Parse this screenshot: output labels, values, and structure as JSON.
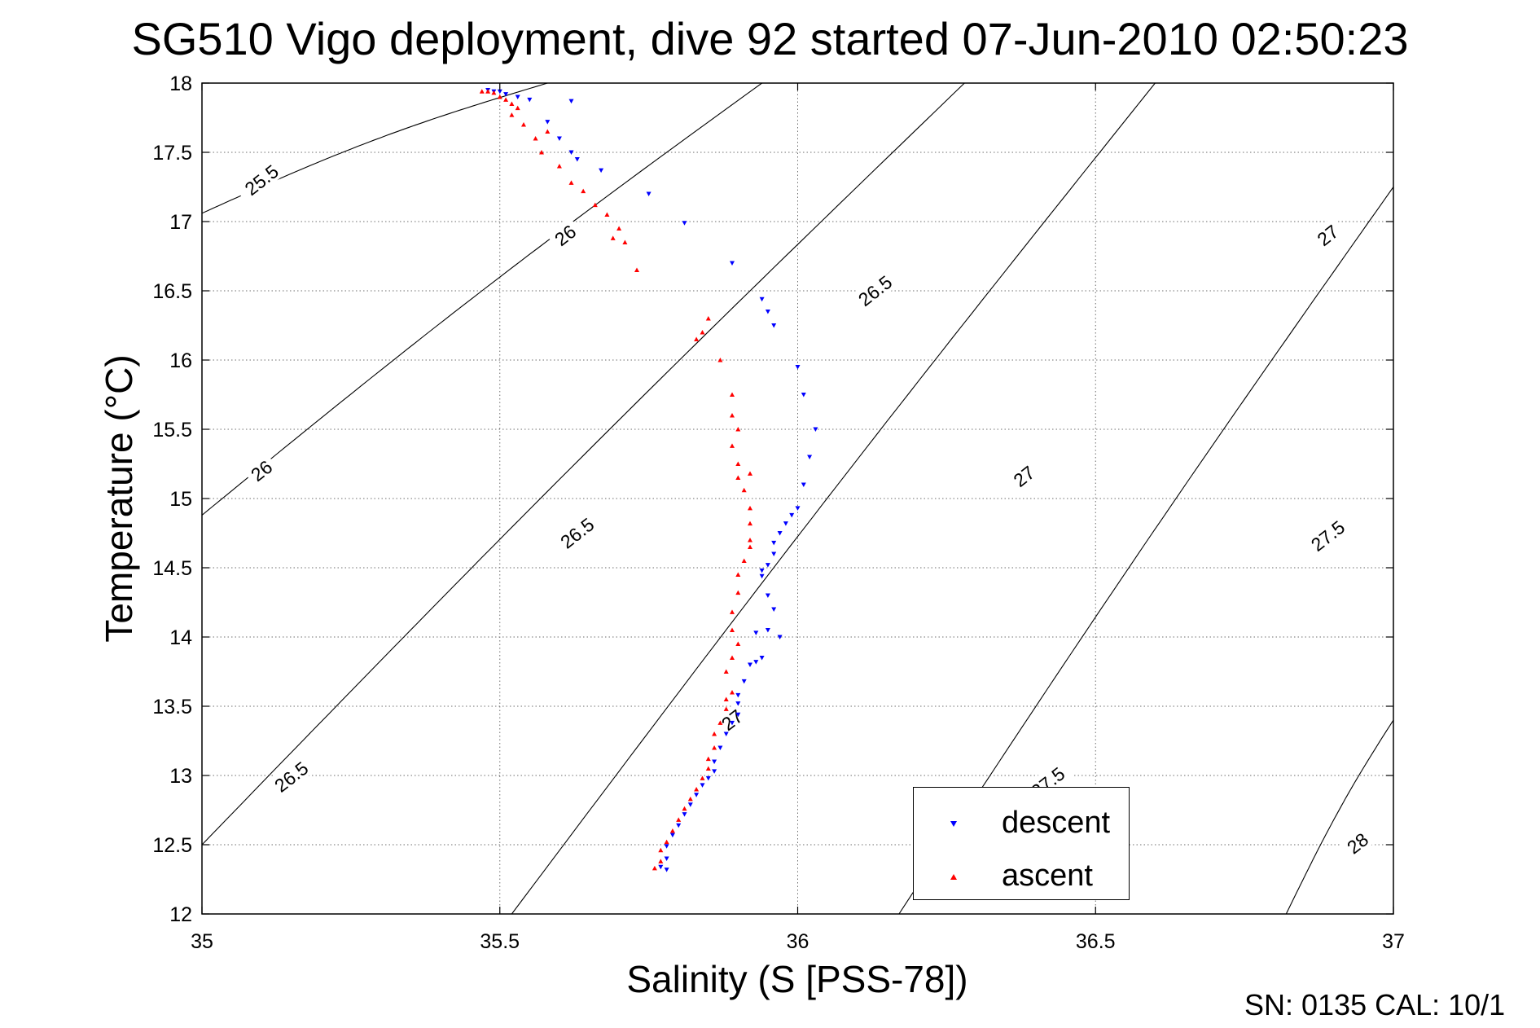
{
  "chart_data": {
    "type": "scatter",
    "title": "SG510 Vigo deployment, dive 92 started 07-Jun-2010 02:50:23",
    "xlabel": "Salinity (S [PSS-78])",
    "ylabel": "Temperature (°C)",
    "xlim": [
      35,
      37
    ],
    "ylim": [
      12,
      18
    ],
    "xticks": [
      "35",
      "35.5",
      "36",
      "36.5",
      "37"
    ],
    "yticks": [
      "12",
      "12.5",
      "13",
      "13.5",
      "14",
      "14.5",
      "15",
      "15.5",
      "16",
      "16.5",
      "17",
      "17.5",
      "18"
    ],
    "grid": true,
    "legend_position": "bottom-right",
    "density_contours": [
      {
        "label": "25.5",
        "a": -4.2
      },
      {
        "label": "26",
        "a": -5.1
      },
      {
        "label": "26.5",
        "a": -6.1
      },
      {
        "label": "27",
        "a": -7.2
      },
      {
        "label": "27.5",
        "a": -8.2
      },
      {
        "label": "28",
        "a": -9.2
      }
    ],
    "contour_labels": [
      {
        "text": "25.5",
        "x": 35.1,
        "y": 17.3
      },
      {
        "text": "26",
        "x": 35.61,
        "y": 16.9
      },
      {
        "text": "26",
        "x": 35.1,
        "y": 15.2
      },
      {
        "text": "26.5",
        "x": 36.13,
        "y": 16.5
      },
      {
        "text": "26.5",
        "x": 35.63,
        "y": 14.75
      },
      {
        "text": "26.5",
        "x": 35.15,
        "y": 12.99
      },
      {
        "text": "27",
        "x": 36.89,
        "y": 16.9
      },
      {
        "text": "27",
        "x": 36.38,
        "y": 15.16
      },
      {
        "text": "27",
        "x": 35.89,
        "y": 13.4
      },
      {
        "text": "27.5",
        "x": 36.42,
        "y": 12.95
      },
      {
        "text": "27.5",
        "x": 36.89,
        "y": 14.73
      },
      {
        "text": "28",
        "x": 36.94,
        "y": 12.51
      }
    ],
    "series": [
      {
        "name": "descent",
        "color": "#0000ff",
        "marker": "triangle-down",
        "points": [
          [
            35.48,
            17.95
          ],
          [
            35.49,
            17.94
          ],
          [
            35.5,
            17.94
          ],
          [
            35.51,
            17.92
          ],
          [
            35.53,
            17.9
          ],
          [
            35.55,
            17.88
          ],
          [
            35.62,
            17.87
          ],
          [
            35.58,
            17.72
          ],
          [
            35.6,
            17.6
          ],
          [
            35.62,
            17.5
          ],
          [
            35.63,
            17.45
          ],
          [
            35.67,
            17.37
          ],
          [
            35.75,
            17.2
          ],
          [
            35.81,
            16.99
          ],
          [
            35.89,
            16.7
          ],
          [
            35.94,
            16.44
          ],
          [
            35.95,
            16.35
          ],
          [
            35.96,
            16.25
          ],
          [
            36.0,
            15.95
          ],
          [
            36.01,
            15.75
          ],
          [
            36.03,
            15.5
          ],
          [
            36.02,
            15.3
          ],
          [
            36.01,
            15.1
          ],
          [
            36.0,
            14.93
          ],
          [
            35.99,
            14.88
          ],
          [
            35.98,
            14.82
          ],
          [
            35.97,
            14.75
          ],
          [
            35.96,
            14.68
          ],
          [
            35.96,
            14.6
          ],
          [
            35.95,
            14.52
          ],
          [
            35.94,
            14.48
          ],
          [
            35.94,
            14.44
          ],
          [
            35.95,
            14.3
          ],
          [
            35.96,
            14.2
          ],
          [
            35.97,
            14.0
          ],
          [
            35.95,
            14.05
          ],
          [
            35.93,
            14.03
          ],
          [
            35.94,
            13.85
          ],
          [
            35.93,
            13.82
          ],
          [
            35.92,
            13.8
          ],
          [
            35.91,
            13.68
          ],
          [
            35.9,
            13.58
          ],
          [
            35.9,
            13.52
          ],
          [
            35.9,
            13.44
          ],
          [
            35.89,
            13.38
          ],
          [
            35.88,
            13.3
          ],
          [
            35.87,
            13.2
          ],
          [
            35.86,
            13.1
          ],
          [
            35.86,
            13.03
          ],
          [
            35.85,
            12.98
          ],
          [
            35.84,
            12.93
          ],
          [
            35.83,
            12.86
          ],
          [
            35.82,
            12.79
          ],
          [
            35.81,
            12.72
          ],
          [
            35.8,
            12.64
          ],
          [
            35.79,
            12.57
          ],
          [
            35.78,
            12.49
          ],
          [
            35.78,
            12.4
          ],
          [
            35.77,
            12.34
          ],
          [
            35.78,
            12.32
          ]
        ]
      },
      {
        "name": "ascent",
        "color": "#ff0000",
        "marker": "triangle-up",
        "points": [
          [
            35.47,
            17.94
          ],
          [
            35.48,
            17.94
          ],
          [
            35.49,
            17.93
          ],
          [
            35.5,
            17.9
          ],
          [
            35.51,
            17.88
          ],
          [
            35.52,
            17.85
          ],
          [
            35.53,
            17.82
          ],
          [
            35.52,
            17.77
          ],
          [
            35.54,
            17.7
          ],
          [
            35.56,
            17.6
          ],
          [
            35.57,
            17.5
          ],
          [
            35.58,
            17.65
          ],
          [
            35.6,
            17.4
          ],
          [
            35.62,
            17.28
          ],
          [
            35.64,
            17.22
          ],
          [
            35.66,
            17.12
          ],
          [
            35.68,
            17.05
          ],
          [
            35.7,
            16.95
          ],
          [
            35.69,
            16.88
          ],
          [
            35.71,
            16.85
          ],
          [
            35.73,
            16.65
          ],
          [
            35.85,
            16.3
          ],
          [
            35.84,
            16.2
          ],
          [
            35.83,
            16.15
          ],
          [
            35.87,
            16.0
          ],
          [
            35.89,
            15.75
          ],
          [
            35.89,
            15.6
          ],
          [
            35.9,
            15.5
          ],
          [
            35.89,
            15.38
          ],
          [
            35.9,
            15.25
          ],
          [
            35.92,
            15.18
          ],
          [
            35.9,
            15.15
          ],
          [
            35.91,
            15.06
          ],
          [
            35.92,
            14.93
          ],
          [
            35.92,
            14.82
          ],
          [
            35.92,
            14.7
          ],
          [
            35.92,
            14.65
          ],
          [
            35.91,
            14.55
          ],
          [
            35.9,
            14.45
          ],
          [
            35.9,
            14.32
          ],
          [
            35.89,
            14.18
          ],
          [
            35.89,
            14.05
          ],
          [
            35.9,
            13.95
          ],
          [
            35.89,
            13.85
          ],
          [
            35.88,
            13.75
          ],
          [
            35.89,
            13.6
          ],
          [
            35.88,
            13.55
          ],
          [
            35.88,
            13.48
          ],
          [
            35.87,
            13.38
          ],
          [
            35.86,
            13.3
          ],
          [
            35.86,
            13.2
          ],
          [
            35.85,
            13.12
          ],
          [
            35.85,
            13.05
          ],
          [
            35.84,
            12.98
          ],
          [
            35.83,
            12.9
          ],
          [
            35.82,
            12.83
          ],
          [
            35.81,
            12.76
          ],
          [
            35.8,
            12.68
          ],
          [
            35.79,
            12.6
          ],
          [
            35.78,
            12.52
          ],
          [
            35.77,
            12.46
          ],
          [
            35.77,
            12.38
          ],
          [
            35.76,
            12.33
          ]
        ]
      }
    ]
  },
  "footer": {
    "calibration_note": "SN: 0135  CAL: 10/1"
  }
}
